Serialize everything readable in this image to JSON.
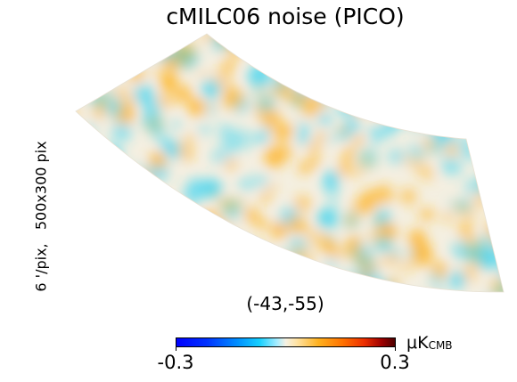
{
  "title": "cMILC06 noise (PICO)",
  "side_label": "6 '/pix,   500x300 pix",
  "center_coord": "(-43,-55)",
  "colorbar": {
    "min_label": "-0.3",
    "max_label": "0.3",
    "unit_main": "μK",
    "unit_sub": "CMB"
  },
  "palette": {
    "blue": "#3ad4f2",
    "orange": "#ffb21f",
    "neutral": "#f4efe1"
  }
}
